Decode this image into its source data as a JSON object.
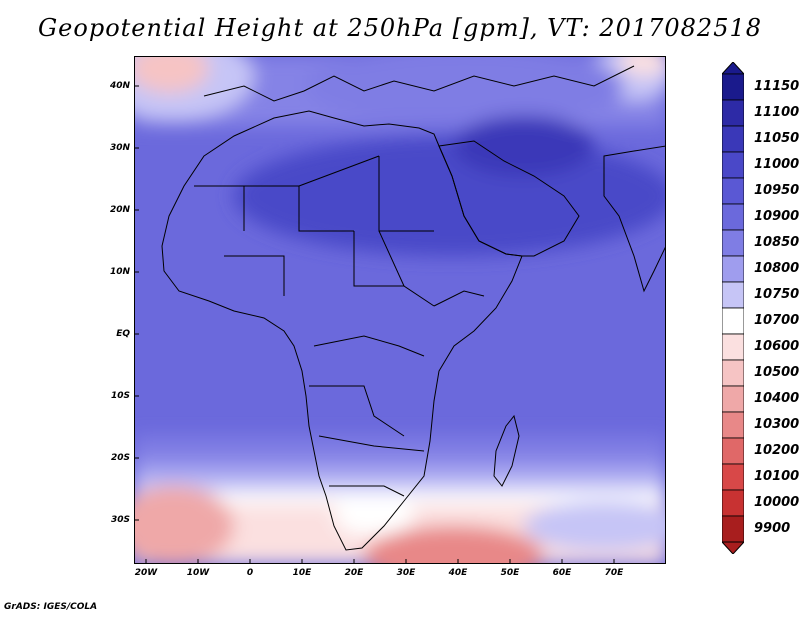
{
  "title": "Geopotential Height at 250hPa [gpm], VT: 2017082518",
  "footer": "GrADS: IGES/COLA",
  "lat_labels": [
    "40N",
    "30N",
    "20N",
    "10N",
    "EQ",
    "10S",
    "20S",
    "30S"
  ],
  "lon_labels": [
    "20W",
    "10W",
    "0",
    "10E",
    "20E",
    "30E",
    "40E",
    "50E",
    "60E",
    "70E"
  ],
  "colorbar": {
    "levels": [
      "11150",
      "11100",
      "11050",
      "11000",
      "10950",
      "10900",
      "10850",
      "10800",
      "10750",
      "10700",
      "10600",
      "10500",
      "10400",
      "10300",
      "10200",
      "10100",
      "10000",
      "9900"
    ],
    "colors": [
      "#1a1a8c",
      "#2d2aa6",
      "#3a38b8",
      "#4a48c8",
      "#5a58d4",
      "#6b69dc",
      "#7f7de4",
      "#9f9dee",
      "#c6c5f6",
      "#ffffff",
      "#fbe0e0",
      "#f6c4c4",
      "#efa8a8",
      "#e88888",
      "#e06868",
      "#d84848",
      "#c83232",
      "#a81e1e"
    ]
  },
  "chart_data": {
    "type": "heatmap",
    "title": "Geopotential Height at 250hPa [gpm], VT: 2017082518",
    "variable": "Geopotential Height",
    "level": "250hPa",
    "units": "gpm",
    "valid_time": "2017082518",
    "lon_range": [
      -22,
      80
    ],
    "lat_range": [
      -37,
      45
    ],
    "contour_levels": [
      9900,
      10000,
      10100,
      10200,
      10300,
      10400,
      10500,
      10600,
      10700,
      10750,
      10800,
      10850,
      10900,
      10950,
      11000,
      11050,
      11100,
      11150
    ]
  }
}
